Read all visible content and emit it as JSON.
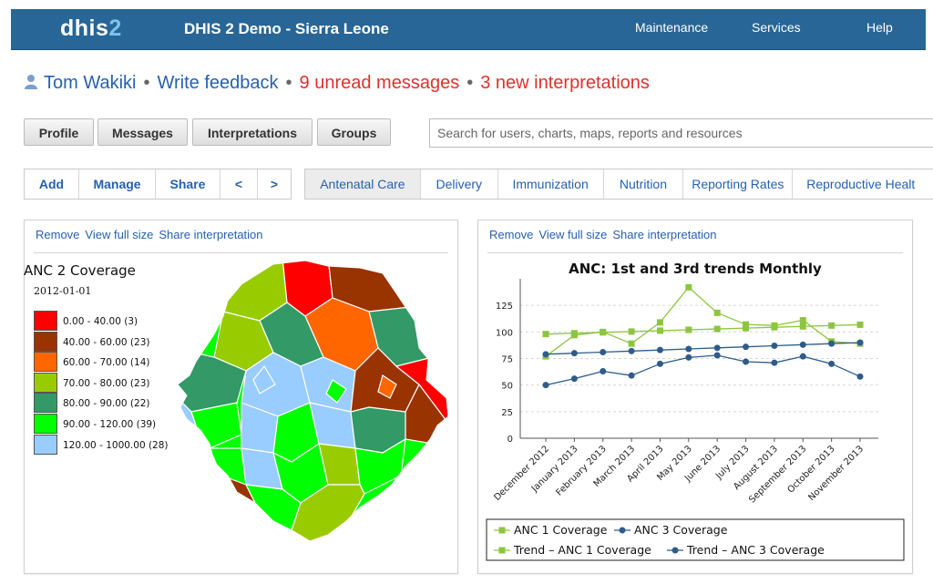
{
  "header": {
    "logo_part1": "dhis",
    "logo_part2": "2",
    "app_title": "DHIS 2 Demo - Sierra Leone",
    "menu": [
      "Maintenance",
      "Services",
      "Help"
    ]
  },
  "user_bar": {
    "user_name": "Tom Wakiki",
    "feedback": "Write feedback",
    "messages": "9 unread messages",
    "interpretations": "3 new interpretations",
    "separator": "•"
  },
  "tabs": [
    "Profile",
    "Messages",
    "Interpretations",
    "Groups"
  ],
  "search": {
    "placeholder": "Search for users, charts, maps, reports and resources"
  },
  "toolbar": {
    "actions": [
      "Add",
      "Manage",
      "Share",
      "<",
      ">"
    ],
    "dashboards": [
      "Antenatal Care",
      "Delivery",
      "Immunization",
      "Nutrition",
      "Reporting Rates",
      "Reproductive Healt"
    ],
    "active_dashboard": "Antenatal Care"
  },
  "panel_links": [
    "Remove",
    "View full size",
    "Share interpretation"
  ],
  "map": {
    "title": "ANC 2 Coverage",
    "period": "2012-01-01",
    "legend": [
      {
        "label": "0.00 - 40.00 (3)",
        "color": "#ff0000"
      },
      {
        "label": "40.00 - 60.00 (23)",
        "color": "#993300"
      },
      {
        "label": "60.00 - 70.00 (14)",
        "color": "#ff6600"
      },
      {
        "label": "70.00 - 80.00 (23)",
        "color": "#99cc00"
      },
      {
        "label": "80.00 - 90.00 (22)",
        "color": "#339966"
      },
      {
        "label": "90.00 - 120.00 (39)",
        "color": "#00ff00"
      },
      {
        "label": "120.00 - 1000.00 (28)",
        "color": "#99ccff"
      }
    ]
  },
  "chart_data": {
    "type": "line",
    "title": "ANC: 1st and 3rd trends Monthly",
    "categories": [
      "December 2012",
      "January 2013",
      "February 2013",
      "March 2013",
      "April 2013",
      "May 2013",
      "June 2013",
      "July 2013",
      "August 2013",
      "September 2013",
      "October 2013",
      "November 2013"
    ],
    "yticks": [
      0,
      25,
      50,
      75,
      100,
      125
    ],
    "ylim": [
      0,
      150
    ],
    "grid": true,
    "legend_position": "bottom",
    "series": [
      {
        "name": "ANC 1 Coverage",
        "marker": "square",
        "color": "#8cc63f",
        "values": [
          77,
          97,
          100,
          89,
          109,
          142,
          118,
          107,
          106,
          111,
          91,
          89
        ]
      },
      {
        "name": "ANC 3 Coverage",
        "marker": "circle",
        "color": "#2e5b8c",
        "values": [
          50,
          56,
          63,
          59,
          70,
          76,
          78,
          72,
          71,
          77,
          70,
          58
        ]
      },
      {
        "name": "Trend – ANC 1 Coverage",
        "marker": "square",
        "color": "#8cc63f",
        "values": [
          98,
          98.8,
          99.6,
          100.4,
          101.2,
          102,
          102.8,
          103.6,
          104.4,
          105.2,
          106,
          106.8
        ]
      },
      {
        "name": "Trend – ANC 3 Coverage",
        "marker": "circle",
        "color": "#2e5b8c",
        "values": [
          79,
          80,
          81,
          82,
          83,
          84,
          85,
          86,
          87,
          88,
          89,
          90
        ]
      }
    ]
  }
}
